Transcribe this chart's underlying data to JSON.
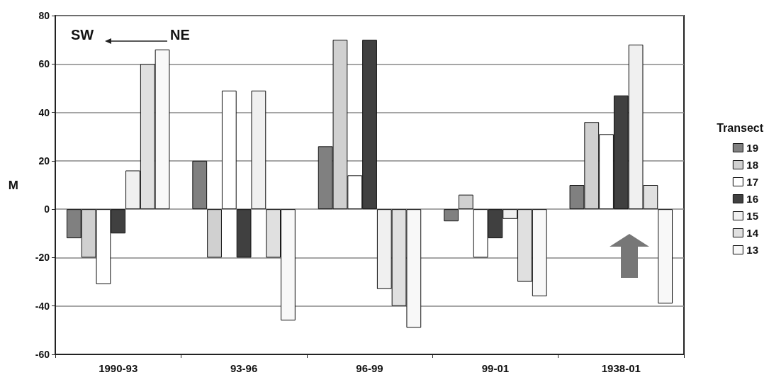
{
  "chart_data": {
    "type": "bar",
    "ylabel": "M",
    "legend_title": "Transect",
    "categories": [
      "1990-93",
      "93-96",
      "96-99",
      "99-01",
      "1938-01"
    ],
    "series": [
      {
        "name": "19",
        "color": "#808080",
        "values": [
          -12,
          20,
          26,
          -5,
          10
        ]
      },
      {
        "name": "18",
        "color": "#d0d0d0",
        "values": [
          -20,
          -20,
          70,
          6,
          36
        ]
      },
      {
        "name": "17",
        "color": "#ffffff",
        "values": [
          -31,
          49,
          14,
          -20,
          31
        ]
      },
      {
        "name": "16",
        "color": "#404040",
        "values": [
          -10,
          -20,
          70,
          -12,
          47
        ]
      },
      {
        "name": "15",
        "color": "#f0f0f0",
        "values": [
          16,
          49,
          -33,
          -4,
          68
        ]
      },
      {
        "name": "14",
        "color": "#e0e0e0",
        "values": [
          60,
          -20,
          -40,
          -30,
          10
        ]
      },
      {
        "name": "13",
        "color": "#f8f8f8",
        "values": [
          66,
          -46,
          -49,
          -36,
          -39
        ]
      }
    ],
    "ylim": [
      -60,
      80
    ],
    "yticks": [
      -60,
      -40,
      -20,
      0,
      20,
      40,
      60,
      80
    ],
    "grid": "y",
    "legend": "right",
    "annotations": [
      "SW",
      "NE"
    ]
  }
}
